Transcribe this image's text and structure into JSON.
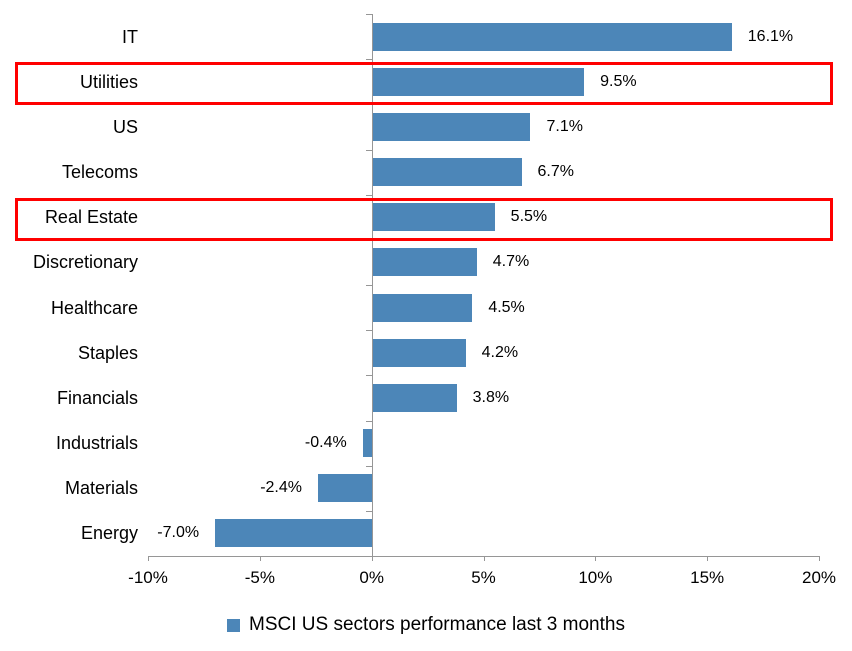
{
  "chart_data": {
    "type": "bar",
    "orientation": "horizontal",
    "title": "",
    "xlabel": "",
    "ylabel": "",
    "categories": [
      "IT",
      "Utilities",
      "US",
      "Telecoms",
      "Real Estate",
      "Discretionary",
      "Healthcare",
      "Staples",
      "Financials",
      "Industrials",
      "Materials",
      "Energy"
    ],
    "values": [
      16.1,
      9.5,
      7.1,
      6.7,
      5.5,
      4.7,
      4.5,
      4.2,
      3.8,
      -0.4,
      -2.4,
      -7.0
    ],
    "value_labels": [
      "16.1%",
      "9.5%",
      "7.1%",
      "6.7%",
      "5.5%",
      "4.7%",
      "4.5%",
      "4.2%",
      "3.8%",
      "-0.4%",
      "-2.4%",
      "-7.0%"
    ],
    "highlighted_categories": [
      "Utilities",
      "Real Estate"
    ],
    "xlim": [
      -10,
      20
    ],
    "x_tick_values": [
      -10,
      -5,
      0,
      5,
      10,
      15,
      20
    ],
    "x_tick_labels": [
      "-10%",
      "-5%",
      "0%",
      "5%",
      "10%",
      "15%",
      "20%"
    ],
    "grid": "off",
    "legend": "MSCI US sectors performance last 3 months",
    "legend_position": "bottom-center",
    "bar_color": "#4c86b8",
    "highlight_color": "#ff0000",
    "axis_color": "#969696",
    "text_color": "#000000"
  }
}
